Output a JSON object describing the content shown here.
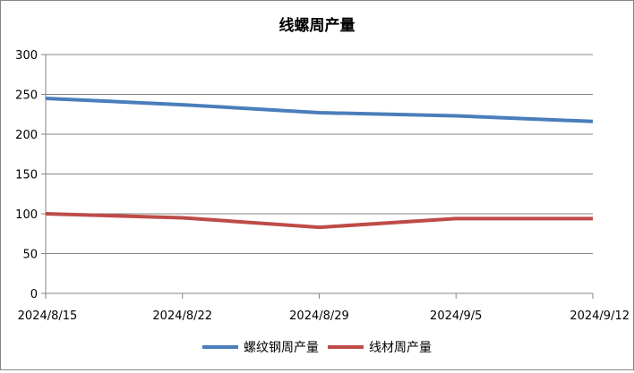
{
  "chart_data": {
    "type": "line",
    "title": "线螺周产量",
    "categories": [
      "2024/8/15",
      "2024/8/22",
      "2024/8/29",
      "2024/9/5",
      "2024/9/12"
    ],
    "ylim": [
      0,
      300
    ],
    "yticks": [
      0,
      50,
      100,
      150,
      200,
      250,
      300
    ],
    "grid": true,
    "legend_position": "bottom",
    "series": [
      {
        "name": "螺纹钢周产量",
        "color": "#4A7EBB",
        "values": [
          245,
          237,
          227,
          223,
          216
        ]
      },
      {
        "name": "线材周产量",
        "color": "#BE4B48",
        "values": [
          100,
          95,
          83,
          94,
          94
        ]
      }
    ]
  }
}
